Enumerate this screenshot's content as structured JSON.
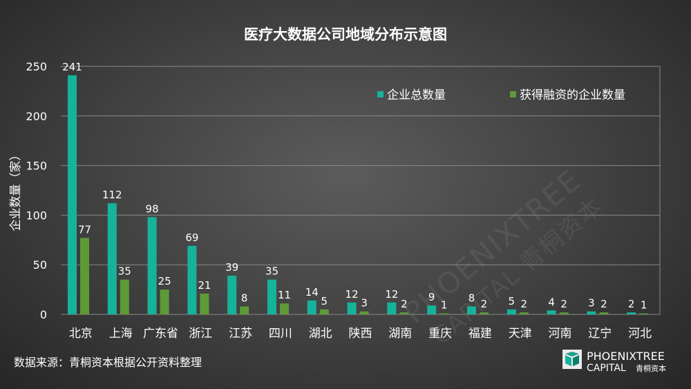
{
  "chart_data": {
    "type": "bar",
    "title": "医疗大数据公司地域分布示意图",
    "ylabel": "企业数量（家）",
    "xlabel": "",
    "ylim": [
      0,
      250
    ],
    "yticks": [
      0,
      50,
      100,
      150,
      200,
      250
    ],
    "grid": true,
    "legend_position": "top-right",
    "categories": [
      "北京",
      "上海",
      "广东省",
      "浙江",
      "江苏",
      "四川",
      "湖北",
      "陕西",
      "湖南",
      "重庆",
      "福建",
      "天津",
      "河南",
      "辽宁",
      "河北"
    ],
    "series": [
      {
        "name": "企业总数量",
        "color": "#16b39b",
        "values": [
          241,
          112,
          98,
          69,
          39,
          35,
          14,
          12,
          12,
          9,
          8,
          5,
          4,
          3,
          2
        ]
      },
      {
        "name": "获得融资的企业数量",
        "color": "#5e9a38",
        "values": [
          77,
          35,
          25,
          21,
          8,
          11,
          5,
          3,
          2,
          1,
          2,
          2,
          2,
          2,
          1
        ]
      }
    ]
  },
  "footer": {
    "source": "数据来源：青桐资本根据公开资料整理"
  },
  "logo": {
    "line1": "PHOENIXTREE",
    "line2": "CAPITAL",
    "line2_cn": "青桐资本",
    "icon": "phoenixtree-logo-icon"
  },
  "watermark": {
    "line1": "PHOENIXTREE",
    "line2": "CAPITAL 青桐资本"
  }
}
